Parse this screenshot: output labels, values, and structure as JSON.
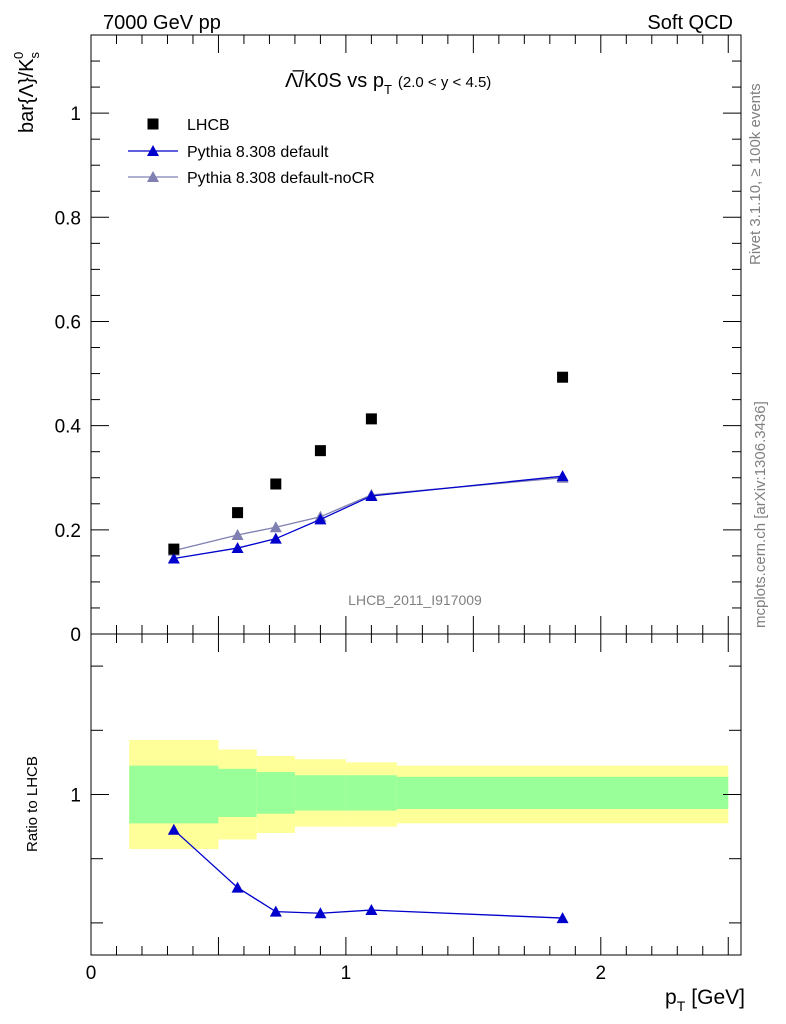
{
  "header": {
    "left": "7000 GeV pp",
    "right": "Soft QCD"
  },
  "side_labels": {
    "rivet": "Rivet 3.1.10, ≥ 100k events",
    "mcplots": "mcplots.cern.ch [arXiv:1306.3436]"
  },
  "watermark": "LHCB_2011_I917009",
  "title": {
    "main": "Λ̅/K0S vs p",
    "sub": "T",
    "range": "(2.0 < y < 4.5)"
  },
  "colors": {
    "data": "#000000",
    "default": "#0000cc",
    "noCR": "#7f7fb2",
    "band_inner": "#99ff99",
    "band_outer": "#ffff99"
  },
  "chart_data": [
    {
      "type": "scatter",
      "panel": "main",
      "ylabel_main": "bar{Λ}/K",
      "ylabel_sub": "s",
      "ylabel_sup": "0",
      "xlim": [
        0,
        2.55
      ],
      "ylim": [
        0,
        1.15
      ],
      "yticks": [
        0,
        0.2,
        0.4,
        0.6,
        0.8,
        1
      ],
      "ytick_labels": [
        "0",
        "0.2",
        "0.4",
        "0.6",
        "0.8",
        "1"
      ],
      "legend_placement": "top-left",
      "series": [
        {
          "name": "LHCB",
          "marker": "square",
          "x": [
            0.325,
            0.575,
            0.725,
            0.9,
            1.1,
            1.85
          ],
          "y": [
            0.163,
            0.233,
            0.288,
            0.352,
            0.413,
            0.493
          ]
        },
        {
          "name": "Pythia 8.308 default",
          "marker": "triangle",
          "x": [
            0.325,
            0.575,
            0.725,
            0.9,
            1.1,
            1.85
          ],
          "y": [
            0.145,
            0.165,
            0.183,
            0.22,
            0.265,
            0.303
          ]
        },
        {
          "name": "Pythia 8.308 default-noCR",
          "marker": "triangle",
          "x": [
            0.325,
            0.575,
            0.725,
            0.9,
            1.1,
            1.85
          ],
          "y": [
            0.16,
            0.19,
            0.205,
            0.225,
            0.267,
            0.3
          ]
        }
      ]
    },
    {
      "type": "line",
      "panel": "ratio",
      "ylabel": "Ratio to LHCB",
      "xlabel": "p",
      "xlabel_sub": "T",
      "xlabel_unit": "[GeV]",
      "xlim": [
        0,
        2.55
      ],
      "ylim": [
        0.5,
        1.5
      ],
      "yticks": [
        1
      ],
      "ytick_labels": [
        "1"
      ],
      "xticks": [
        0,
        1,
        2
      ],
      "xtick_labels": [
        "0",
        "1",
        "2"
      ],
      "bands": [
        {
          "x0": 0.15,
          "x1": 0.5,
          "inner": [
            0.91,
            1.09
          ],
          "outer": [
            0.83,
            1.17
          ]
        },
        {
          "x0": 0.5,
          "x1": 0.65,
          "inner": [
            0.93,
            1.08
          ],
          "outer": [
            0.86,
            1.14
          ]
        },
        {
          "x0": 0.65,
          "x1": 0.8,
          "inner": [
            0.94,
            1.07
          ],
          "outer": [
            0.88,
            1.12
          ]
        },
        {
          "x0": 0.8,
          "x1": 1.0,
          "inner": [
            0.95,
            1.06
          ],
          "outer": [
            0.9,
            1.11
          ]
        },
        {
          "x0": 1.0,
          "x1": 1.2,
          "inner": [
            0.95,
            1.06
          ],
          "outer": [
            0.9,
            1.1
          ]
        },
        {
          "x0": 1.2,
          "x1": 2.5,
          "inner": [
            0.955,
            1.055
          ],
          "outer": [
            0.91,
            1.09
          ]
        }
      ],
      "series": [
        {
          "name": "Pythia 8.308 default",
          "x": [
            0.325,
            0.575,
            0.725,
            0.9,
            1.1,
            1.85
          ],
          "y": [
            0.89,
            0.71,
            0.635,
            0.63,
            0.64,
            0.615
          ]
        }
      ]
    }
  ]
}
